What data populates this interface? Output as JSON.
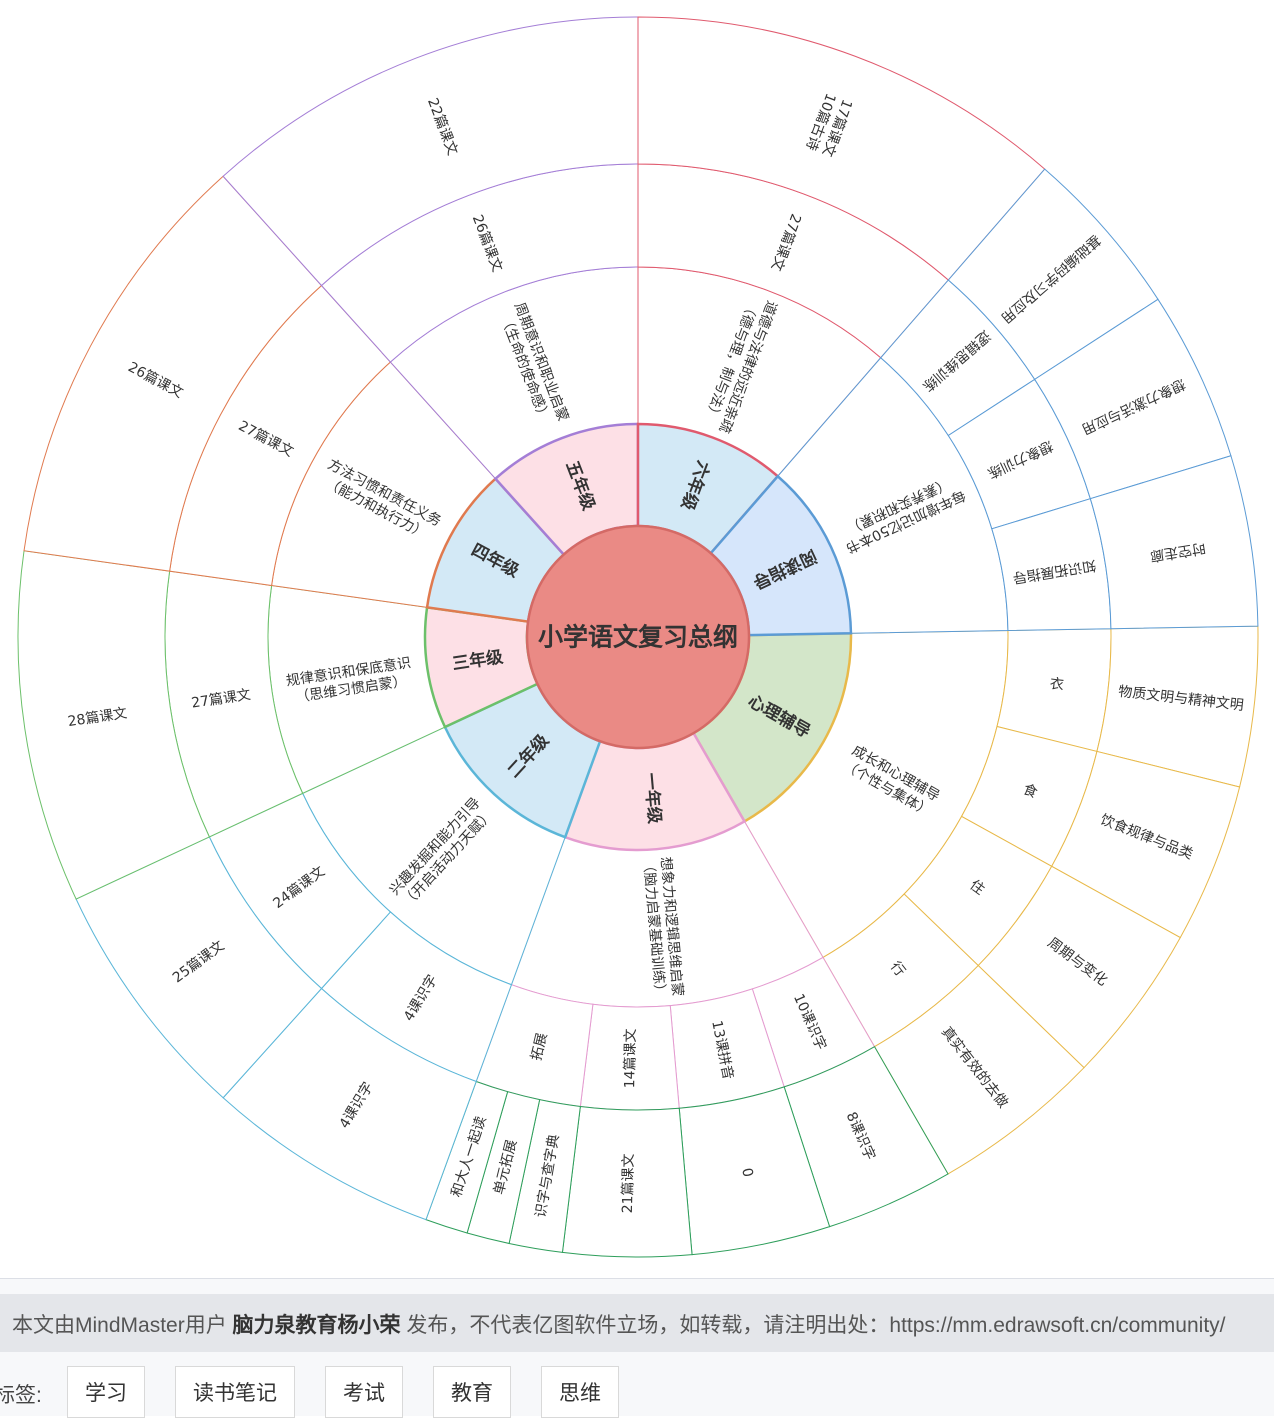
{
  "diagram": {
    "center": "小学语文复习总纲",
    "branches": [
      {
        "key": "psych",
        "label": "心理辅导",
        "color": "#e8b94a",
        "fill": "#d3e6c9",
        "a0": -60,
        "a1": 1,
        "ring2": [
          {
            "label": "成长和心理辅导\n（个性与集体）",
            "a0": -60,
            "a1": 1
          }
        ],
        "ring3": [
          {
            "label": "衣",
            "a0": -14,
            "a1": 1
          },
          {
            "label": "食",
            "a0": -29,
            "a1": -14
          },
          {
            "label": "住",
            "a0": -44,
            "a1": -29
          },
          {
            "label": "行",
            "a0": -60,
            "a1": -44
          }
        ],
        "ring4": [
          {
            "label": "物质文明与精神文明",
            "a0": -14,
            "a1": 1
          },
          {
            "label": "饮食规律与品类",
            "a0": -29,
            "a1": -14
          },
          {
            "label": "周期与变化",
            "a0": -44,
            "a1": -29
          },
          {
            "label": "真实有效的去做",
            "a0": -60,
            "a1": -44
          }
        ]
      },
      {
        "key": "g1",
        "label": "一年级",
        "color": "#e49cd0",
        "fill": "#fde0e6",
        "a0": -110,
        "a1": -60,
        "ring2": [
          {
            "label": "想象力和逻辑思维启蒙\n（脑力启蒙基础训练）",
            "a0": -110,
            "a1": -60
          }
        ],
        "ring3": [
          {
            "label": "10课识字",
            "a0": -72,
            "a1": -60
          },
          {
            "label": "13课拼音",
            "a0": -85,
            "a1": -72
          },
          {
            "label": "14篇课文",
            "a0": -97,
            "a1": -85
          },
          {
            "label": "拓展",
            "a0": -110,
            "a1": -97
          }
        ],
        "ring4": [
          {
            "label": "8课识字",
            "a0": -72,
            "a1": -60,
            "color": "#2e9e5b"
          },
          {
            "label": "0",
            "a0": -85,
            "a1": -72,
            "color": "#2e9e5b"
          },
          {
            "label": "21篇课文",
            "a0": -97,
            "a1": -85,
            "color": "#2e9e5b"
          },
          {
            "label": "识字与查字典",
            "a0": -102,
            "a1": -97,
            "color": "#2e9e5b"
          },
          {
            "label": "单元拓展",
            "a0": -106,
            "a1": -102,
            "color": "#2e9e5b"
          },
          {
            "label": "和大人一起读",
            "a0": -110,
            "a1": -106,
            "color": "#2e9e5b"
          }
        ]
      },
      {
        "key": "g2",
        "label": "二年级",
        "color": "#5bb6d8",
        "fill": "#d3e9f6",
        "a0": -155,
        "a1": -110,
        "ring2": [
          {
            "label": "兴趣发掘和能力引导\n（开启活动力天赋）",
            "a0": -155,
            "a1": -110
          }
        ],
        "ring3": [
          {
            "label": "4课识字",
            "a0": -132,
            "a1": -110
          },
          {
            "label": "24篇课文",
            "a0": -155,
            "a1": -132
          }
        ],
        "ring4": [
          {
            "label": "4课识字",
            "a0": -132,
            "a1": -110
          },
          {
            "label": "25篇课文",
            "a0": -155,
            "a1": -132
          }
        ]
      },
      {
        "key": "g3",
        "label": "三年级",
        "color": "#6cc06a",
        "fill": "#fde0e6",
        "a0": -188,
        "a1": -155,
        "ring2": [
          {
            "label": "规律意识和保底意识\n（思维习惯启蒙）",
            "a0": -188,
            "a1": -155
          }
        ],
        "ring3": [
          {
            "label": "27篇课文",
            "a0": -188,
            "a1": -155
          }
        ],
        "ring4": [
          {
            "label": "28篇课文",
            "a0": -188,
            "a1": -155
          }
        ]
      },
      {
        "key": "g4",
        "label": "四年级",
        "color": "#e07a4f",
        "fill": "#d3e9f6",
        "a0": -228,
        "a1": -188,
        "ring2": [
          {
            "label": "方法习惯和责任义务\n（能力和执行力）",
            "a0": -228,
            "a1": -188
          }
        ],
        "ring3": [
          {
            "label": "27篇课文",
            "a0": -228,
            "a1": -188
          }
        ],
        "ring4": [
          {
            "label": "26篇课文",
            "a0": -228,
            "a1": -188
          }
        ]
      },
      {
        "key": "g5",
        "label": "五年级",
        "color": "#a47ed6",
        "fill": "#fde0e6",
        "a0": -270,
        "a1": -228,
        "ring2": [
          {
            "label": "周期意识和职业启蒙\n（生命的使命感）",
            "a0": -270,
            "a1": -228
          }
        ],
        "ring3": [
          {
            "label": "26篇课文",
            "a0": -270,
            "a1": -228
          }
        ],
        "ring4": [
          {
            "label": "22篇课文",
            "a0": -270,
            "a1": -228
          }
        ]
      },
      {
        "key": "g6",
        "label": "六年级",
        "color": "#e05a6e",
        "fill": "#d3e9f6",
        "a0": -311,
        "a1": -270,
        "ring2": [
          {
            "label": "道德与法律的远近亲疏\n（德与理，制与法）",
            "a0": -311,
            "a1": -270
          }
        ],
        "ring3": [
          {
            "label": "27篇课文",
            "a0": -311,
            "a1": -270
          }
        ],
        "ring4": [
          {
            "label": "17篇课文\n10篇古诗",
            "a0": -311,
            "a1": -270
          }
        ]
      },
      {
        "key": "reading",
        "label": "阅读指导",
        "color": "#5b9bd5",
        "fill": "#d6e6fb",
        "a0": -359,
        "a1": -311,
        "ring2": [
          {
            "label": "每年增加记忆50本书\n（素养实和积累）",
            "a0": -359,
            "a1": -311
          }
        ],
        "ring3": [
          {
            "label": "逻辑思维训练",
            "a0": -327,
            "a1": -311
          },
          {
            "label": "想象力训练",
            "a0": -343,
            "a1": -327
          },
          {
            "label": "知识拓展指导",
            "a0": -359,
            "a1": -343
          }
        ],
        "ring4": [
          {
            "label": "基础编码学习及应用",
            "a0": -327,
            "a1": -311
          },
          {
            "label": "想象力激活与应用",
            "a0": -343,
            "a1": -327
          },
          {
            "label": "时空走廊",
            "a0": -359,
            "a1": -343
          }
        ]
      }
    ]
  },
  "footer": {
    "notice_prefix": "本文由MindMaster用户",
    "notice_author": "脑力泉教育杨小荣",
    "notice_suffix": "发布，不代表亿图软件立场，如转载，请注明出处：https://mm.edrawsoft.cn/community/",
    "tags_label": "标签:",
    "tags": [
      "学习",
      "读书笔记",
      "考试",
      "教育",
      "思维"
    ]
  }
}
